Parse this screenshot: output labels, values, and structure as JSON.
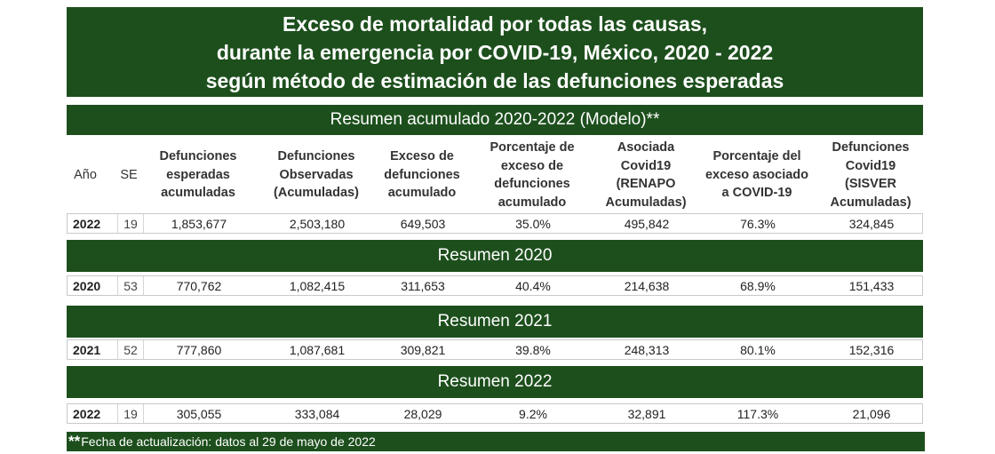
{
  "title": {
    "line1": "Exceso de mortalidad por todas las causas,",
    "line2": "durante la emergencia por COVID-19, México, 2020 - 2022",
    "line3": "según método de estimación de las defunciones esperadas"
  },
  "sections": {
    "cumulative": "Resumen acumulado 2020-2022 (Modelo)**",
    "y2020": "Resumen 2020",
    "y2021": "Resumen 2021",
    "y2022": "Resumen 2022"
  },
  "columns": {
    "year": "Año",
    "se": "SE",
    "expected": "Defunciones esperadas acumuladas",
    "observed": "Defunciones Observadas (Acumuladas)",
    "excess": "Exceso de defunciones acumulado",
    "excess_pct": "Porcentaje de exceso de defunciones acumulado",
    "covid_renapo": "Asociada Covid19 (RENAPO Acumuladas)",
    "covid_pct": "Porcentaje del exceso asociado a COVID-19",
    "covid_sisver": "Defunciones Covid19 (SISVER Acumuladas)"
  },
  "rows": {
    "cumulative": {
      "year": "2022",
      "se": "19",
      "expected": "1,853,677",
      "observed": "2,503,180",
      "excess": "649,503",
      "excess_pct": "35.0%",
      "covid_renapo": "495,842",
      "covid_pct": "76.3%",
      "covid_sisver": "324,845"
    },
    "y2020": {
      "year": "2020",
      "se": "53",
      "expected": "770,762",
      "observed": "1,082,415",
      "excess": "311,653",
      "excess_pct": "40.4%",
      "covid_renapo": "214,638",
      "covid_pct": "68.9%",
      "covid_sisver": "151,433"
    },
    "y2021": {
      "year": "2021",
      "se": "52",
      "expected": "777,860",
      "observed": "1,087,681",
      "excess": "309,821",
      "excess_pct": "39.8%",
      "covid_renapo": "248,313",
      "covid_pct": "80.1%",
      "covid_sisver": "152,316"
    },
    "y2022": {
      "year": "2022",
      "se": "19",
      "expected": "305,055",
      "observed": "333,084",
      "excess": "28,029",
      "excess_pct": "9.2%",
      "covid_renapo": "32,891",
      "covid_pct": "117.3%",
      "covid_sisver": "21,096"
    }
  },
  "footer": {
    "asterisks": "**",
    "text": "Fecha de actualización: datos  al 29 de mayo de 2022"
  },
  "colors": {
    "header_green": "#1d4f1d"
  }
}
